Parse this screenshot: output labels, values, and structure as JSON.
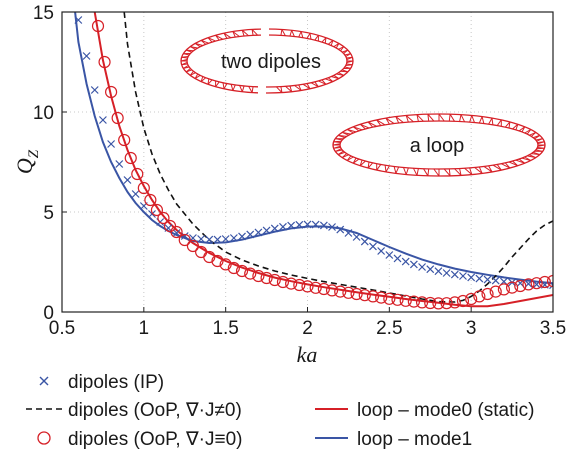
{
  "chart_data": {
    "type": "line",
    "xlabel": "ka",
    "ylabel": "Q",
    "ylabel_sub": "Z",
    "xlim": [
      0.5,
      3.5
    ],
    "ylim": [
      0,
      15
    ],
    "xticks": [
      "0.5",
      "1",
      "1.5",
      "2",
      "2.5",
      "3",
      "3.5"
    ],
    "xtick_values": [
      0.5,
      1,
      1.5,
      2,
      2.5,
      3,
      3.5
    ],
    "yticks": [
      "0",
      "5",
      "10",
      "15"
    ],
    "ytick_values": [
      0,
      5,
      10,
      15
    ],
    "grid": true,
    "annotations": [
      "two dipoles",
      "a loop"
    ],
    "series": [
      {
        "name": "dipoles (IP)",
        "style": "x-markers",
        "color": "#3a55a5",
        "x": [
          0.6,
          0.65,
          0.7,
          0.75,
          0.8,
          0.85,
          0.9,
          0.95,
          1.0,
          1.05,
          1.1,
          1.15,
          1.2,
          1.25,
          1.3,
          1.35,
          1.4,
          1.45,
          1.5,
          1.55,
          1.6,
          1.65,
          1.7,
          1.75,
          1.8,
          1.85,
          1.9,
          1.95,
          2.0,
          2.05,
          2.1,
          2.15,
          2.2,
          2.25,
          2.3,
          2.35,
          2.4,
          2.45,
          2.5,
          2.55,
          2.6,
          2.65,
          2.7,
          2.75,
          2.8,
          2.85,
          2.9,
          2.95,
          3.0,
          3.05,
          3.1,
          3.15,
          3.2,
          3.25,
          3.3,
          3.35,
          3.4,
          3.45,
          3.5
        ],
        "y": [
          14.6,
          12.8,
          11.1,
          9.6,
          8.4,
          7.4,
          6.6,
          5.9,
          5.3,
          4.9,
          4.5,
          4.2,
          3.95,
          3.8,
          3.7,
          3.65,
          3.62,
          3.62,
          3.65,
          3.7,
          3.78,
          3.88,
          3.98,
          4.08,
          4.18,
          4.26,
          4.32,
          4.36,
          4.38,
          4.37,
          4.33,
          4.25,
          4.12,
          3.95,
          3.75,
          3.52,
          3.28,
          3.05,
          2.85,
          2.68,
          2.52,
          2.38,
          2.25,
          2.14,
          2.04,
          1.95,
          1.87,
          1.8,
          1.73,
          1.67,
          1.62,
          1.57,
          1.52,
          1.48,
          1.44,
          1.41,
          1.38,
          1.36,
          1.34
        ]
      },
      {
        "name": "dipoles (OoP, ∇·J≠0)",
        "style": "dashed",
        "color": "#111111",
        "x": [
          0.88,
          0.9,
          0.95,
          1.0,
          1.05,
          1.1,
          1.15,
          1.2,
          1.3,
          1.4,
          1.5,
          1.6,
          1.7,
          1.8,
          1.9,
          2.0,
          2.1,
          2.2,
          2.3,
          2.4,
          2.5,
          2.6,
          2.7,
          2.8,
          2.9,
          2.95,
          3.0,
          3.05,
          3.1,
          3.15,
          3.2,
          3.25,
          3.3,
          3.35,
          3.4,
          3.45,
          3.5
        ],
        "y": [
          15.0,
          13.4,
          11.0,
          9.2,
          7.9,
          6.9,
          6.1,
          5.4,
          4.4,
          3.6,
          3.0,
          2.6,
          2.3,
          2.05,
          1.85,
          1.68,
          1.52,
          1.38,
          1.24,
          1.1,
          0.95,
          0.8,
          0.65,
          0.52,
          0.5,
          0.58,
          0.78,
          1.05,
          1.4,
          1.8,
          2.25,
          2.75,
          3.2,
          3.65,
          4.05,
          4.35,
          4.55
        ]
      },
      {
        "name": "dipoles (OoP, ∇·J≡0)",
        "style": "o-markers",
        "color": "#d62027",
        "x": [
          0.72,
          0.76,
          0.8,
          0.84,
          0.88,
          0.92,
          0.96,
          1.0,
          1.04,
          1.08,
          1.12,
          1.16,
          1.2,
          1.25,
          1.3,
          1.35,
          1.4,
          1.45,
          1.5,
          1.55,
          1.6,
          1.65,
          1.7,
          1.75,
          1.8,
          1.85,
          1.9,
          1.95,
          2.0,
          2.05,
          2.1,
          2.15,
          2.2,
          2.25,
          2.3,
          2.35,
          2.4,
          2.45,
          2.5,
          2.55,
          2.6,
          2.65,
          2.7,
          2.75,
          2.8,
          2.85,
          2.9,
          2.95,
          3.0,
          3.05,
          3.1,
          3.15,
          3.2,
          3.25,
          3.3,
          3.35,
          3.4,
          3.45,
          3.5
        ],
        "y": [
          14.3,
          12.5,
          11.0,
          9.7,
          8.6,
          7.7,
          6.9,
          6.2,
          5.6,
          5.1,
          4.7,
          4.3,
          4.0,
          3.6,
          3.3,
          3.0,
          2.75,
          2.55,
          2.38,
          2.2,
          2.05,
          1.92,
          1.8,
          1.7,
          1.6,
          1.5,
          1.42,
          1.35,
          1.28,
          1.21,
          1.15,
          1.08,
          1.02,
          0.96,
          0.9,
          0.84,
          0.78,
          0.72,
          0.66,
          0.61,
          0.56,
          0.52,
          0.48,
          0.45,
          0.43,
          0.44,
          0.48,
          0.55,
          0.65,
          0.78,
          0.9,
          1.02,
          1.13,
          1.22,
          1.3,
          1.38,
          1.44,
          1.5,
          1.55
        ]
      },
      {
        "name": "loop – mode0 (static)",
        "style": "solid",
        "color": "#d62027",
        "x": [
          0.7,
          0.75,
          0.8,
          0.85,
          0.9,
          0.95,
          1.0,
          1.05,
          1.1,
          1.15,
          1.2,
          1.25,
          1.3,
          1.4,
          1.5,
          1.6,
          1.7,
          1.8,
          1.9,
          2.0,
          2.1,
          2.2,
          2.3,
          2.4,
          2.5,
          2.6,
          2.7,
          2.8,
          2.9,
          3.0,
          3.1,
          3.2,
          3.3,
          3.4,
          3.5
        ],
        "y": [
          15.0,
          12.6,
          10.8,
          9.3,
          8.1,
          7.1,
          6.3,
          5.6,
          5.0,
          4.5,
          4.1,
          3.75,
          3.45,
          2.95,
          2.55,
          2.22,
          1.95,
          1.72,
          1.54,
          1.38,
          1.24,
          1.11,
          0.99,
          0.87,
          0.76,
          0.65,
          0.55,
          0.46,
          0.36,
          0.29,
          0.29,
          0.4,
          0.55,
          0.7,
          0.85
        ]
      },
      {
        "name": "loop – mode1",
        "style": "solid",
        "color": "#3a55a5",
        "x": [
          0.58,
          0.6,
          0.65,
          0.7,
          0.75,
          0.8,
          0.85,
          0.9,
          0.95,
          1.0,
          1.05,
          1.1,
          1.15,
          1.2,
          1.3,
          1.4,
          1.5,
          1.6,
          1.7,
          1.8,
          1.9,
          2.0,
          2.1,
          2.2,
          2.3,
          2.4,
          2.5,
          2.6,
          2.7,
          2.8,
          2.9,
          3.0,
          3.1,
          3.2,
          3.3,
          3.4,
          3.5
        ],
        "y": [
          15.0,
          13.5,
          11.4,
          9.8,
          8.5,
          7.5,
          6.7,
          6.0,
          5.45,
          5.0,
          4.6,
          4.3,
          4.05,
          3.85,
          3.55,
          3.45,
          3.48,
          3.62,
          3.82,
          4.02,
          4.18,
          4.27,
          4.28,
          4.18,
          3.95,
          3.6,
          3.25,
          2.92,
          2.62,
          2.38,
          2.17,
          2.0,
          1.86,
          1.73,
          1.62,
          1.52,
          1.44
        ]
      }
    ]
  },
  "legend": {
    "items": [
      {
        "label": "dipoles (IP)",
        "color": "#3a55a5",
        "style": "x-marker"
      },
      {
        "label": "dipoles (OoP, ∇·J≠0)",
        "color": "#111111",
        "style": "dashed"
      },
      {
        "label": "dipoles (OoP, ∇·J≡0)",
        "color": "#d62027",
        "style": "o-marker"
      },
      {
        "label": "loop – mode0 (static)",
        "color": "#d62027",
        "style": "solid"
      },
      {
        "label": "loop – mode1",
        "color": "#3a55a5",
        "style": "solid"
      }
    ]
  }
}
